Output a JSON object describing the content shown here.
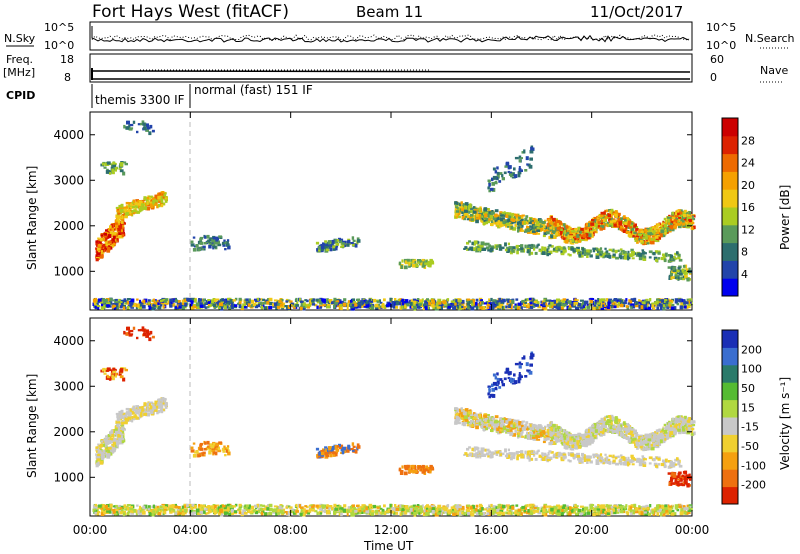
{
  "header": {
    "station": "Fort Hays West (fitACF)",
    "beam": "Beam 11",
    "date": "11/Oct/2017"
  },
  "strips": {
    "nsky_label": "N.Sky",
    "nsearch_label": "N.Search",
    "freq_label": "Freq.",
    "freq_unit": "[MHz]",
    "nave_label": "Nave",
    "cpid_label": "CPID",
    "nsky_ticks": [
      "10^5",
      "10^0"
    ],
    "freq_ticks": [
      "18",
      "8"
    ],
    "nave_ticks": [
      "60",
      "0"
    ],
    "cpid_modes": [
      "themis 3300 IF",
      "normal (fast) 151 IF"
    ]
  },
  "chart_data": [
    {
      "type": "heatmap",
      "panel": "power",
      "ylabel": "Slant Range [km]",
      "xlabel": "",
      "ylim": [
        150,
        4500
      ],
      "xlim": [
        "00:00",
        "24:00"
      ],
      "yticks": [
        "1000",
        "2000",
        "3000",
        "4000"
      ],
      "colorbar": {
        "label": "Power [dB]",
        "ticks": [
          "4",
          "8",
          "12",
          "16",
          "20",
          "24",
          "28"
        ],
        "colors": [
          "#0000ee",
          "#2244aa",
          "#2d6e6e",
          "#5a9a5a",
          "#aacc22",
          "#f0c814",
          "#f5a000",
          "#ee6a00",
          "#dd2200",
          "#cc0000"
        ]
      }
    },
    {
      "type": "heatmap",
      "panel": "velocity",
      "ylabel": "Slant Range [km]",
      "xlabel": "Time UT",
      "ylim": [
        150,
        4500
      ],
      "xlim": [
        "00:00",
        "24:00"
      ],
      "yticks": [
        "1000",
        "2000",
        "3000",
        "4000"
      ],
      "xticks": [
        "00:00",
        "04:00",
        "08:00",
        "12:00",
        "16:00",
        "20:00",
        "00:00"
      ],
      "colorbar": {
        "label": "Velocity [m s⁻¹]",
        "ticks": [
          "200",
          "100",
          "50",
          "15",
          "-15",
          "-50",
          "-100",
          "-200"
        ],
        "colors": [
          "#1a2fb5",
          "#3a6ed0",
          "#2a7a6a",
          "#55bb33",
          "#b0d840",
          "#c8c8c8",
          "#f0d030",
          "#f5a010",
          "#ee7010",
          "#dd2200"
        ]
      }
    }
  ]
}
